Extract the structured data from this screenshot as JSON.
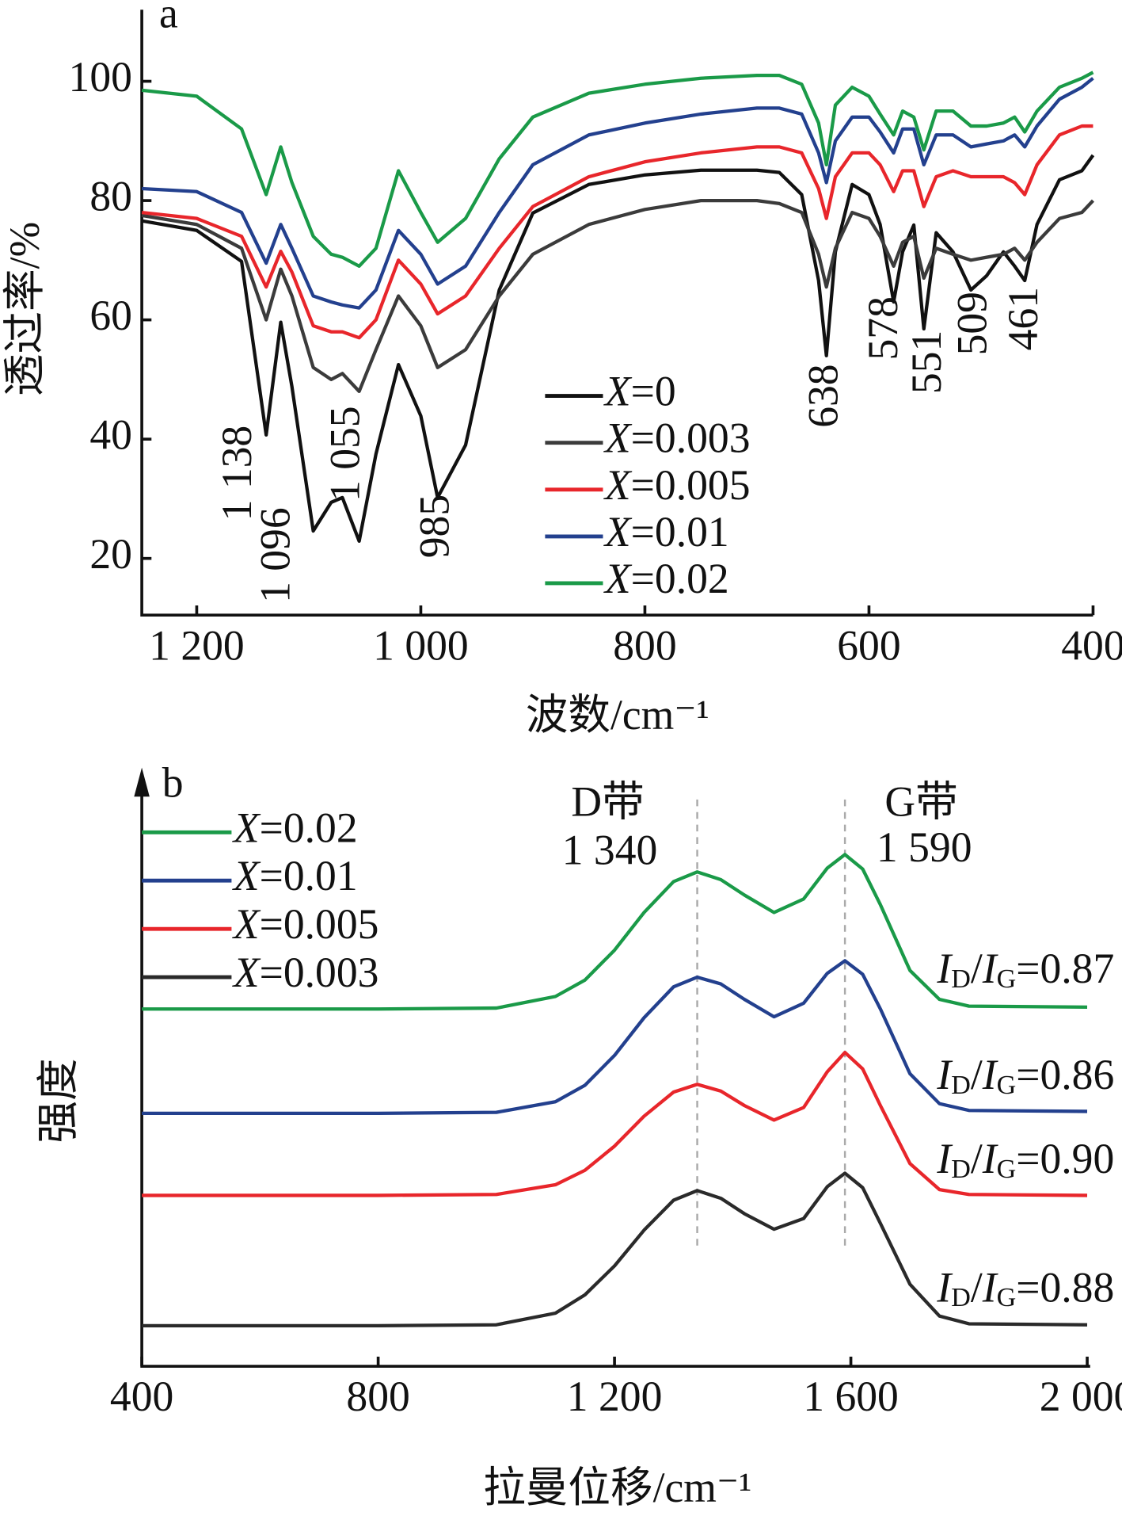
{
  "chart_data": [
    {
      "type": "line",
      "panel": "a",
      "y_label": "透过率/%",
      "x_label": "波数/cm⁻¹",
      "xlim": [
        1249,
        400
      ],
      "ylim": [
        10.5,
        112
      ],
      "xticks": [
        {
          "value": 1200,
          "label": "1 200"
        },
        {
          "value": 1000,
          "label": "1 000"
        },
        800,
        600,
        400
      ],
      "yticks": [
        20,
        40,
        60,
        80,
        100
      ],
      "annotations": [
        "1 138",
        "1 096",
        "1 055",
        "985",
        "638",
        "578",
        "551",
        "509",
        "461"
      ],
      "x": [
        1249,
        1200,
        1160,
        1138,
        1125,
        1115,
        1096,
        1080,
        1070,
        1055,
        1040,
        1020,
        1000,
        985,
        960,
        930,
        900,
        850,
        800,
        750,
        700,
        680,
        660,
        645,
        638,
        630,
        615,
        600,
        590,
        578,
        570,
        560,
        551,
        540,
        525,
        509,
        495,
        480,
        470,
        461,
        450,
        430,
        410,
        400
      ],
      "series": [
        {
          "name": "X=0",
          "color": "#111111",
          "values": [
            76.6,
            75,
            69.8,
            40.7,
            59.6,
            48.8,
            24.6,
            29.4,
            30.2,
            22.9,
            37.5,
            52.5,
            43.9,
            30.2,
            39,
            65,
            77.9,
            82.7,
            84.3,
            85.1,
            85.1,
            84.7,
            81,
            66.6,
            54,
            71.4,
            82.7,
            81,
            76,
            63,
            71.4,
            75.9,
            58.5,
            74.6,
            71.4,
            65,
            67.4,
            71.4,
            69,
            66.6,
            76,
            83.5,
            85,
            87.6
          ]
        },
        {
          "name": "X=0.003",
          "color": "#3b3b3b",
          "values": [
            77.5,
            76,
            72,
            60,
            68.5,
            64,
            52,
            50,
            51,
            48,
            55,
            64,
            59,
            52,
            55,
            64,
            71,
            76,
            78.5,
            80,
            80,
            79.5,
            78,
            71,
            65.5,
            72,
            78,
            77,
            74,
            69,
            73,
            74,
            67,
            72,
            71,
            70,
            70.5,
            71,
            72,
            70,
            73,
            77,
            78,
            80
          ]
        },
        {
          "name": "X=0.005",
          "color": "#e8262b",
          "values": [
            78,
            77,
            74,
            65.5,
            71.5,
            68,
            59,
            58,
            58,
            57,
            60,
            70,
            66,
            61,
            64,
            72,
            79,
            84,
            86.5,
            88,
            89,
            89,
            88,
            82,
            77,
            84,
            88,
            88,
            86,
            81.5,
            85,
            85,
            79,
            84,
            85,
            84,
            84,
            84,
            83,
            81,
            86,
            91,
            92.5,
            92.5
          ]
        },
        {
          "name": "X=0.01",
          "color": "#23408e",
          "values": [
            82,
            81.5,
            78,
            69.5,
            76,
            72,
            64,
            63,
            62.5,
            62,
            65,
            75,
            71,
            66,
            69,
            78,
            86,
            91,
            93,
            94.5,
            95.5,
            95.5,
            94.5,
            88,
            83,
            90,
            94,
            94,
            91.5,
            88,
            92,
            92,
            86,
            91,
            91,
            89,
            89.5,
            90,
            91,
            89,
            92.5,
            97,
            99,
            100.5
          ]
        },
        {
          "name": "X=0.02",
          "color": "#1a9a48",
          "values": [
            98.5,
            97.5,
            92,
            81,
            89,
            83,
            74,
            71,
            70.5,
            69,
            72,
            85,
            78,
            73,
            77,
            87,
            94,
            98,
            99.5,
            100.5,
            101,
            101,
            99.5,
            93,
            86,
            96,
            99,
            97.5,
            94.5,
            91,
            95,
            94,
            88.5,
            95,
            95,
            92.5,
            92.5,
            93,
            94,
            91.5,
            95,
            99,
            100.5,
            101.5
          ]
        }
      ]
    },
    {
      "type": "line",
      "panel": "b",
      "y_label": "强度",
      "x_label": "拉曼位移/cm⁻¹",
      "xlim": [
        400,
        2005
      ],
      "ylim": [
        0,
        620
      ],
      "xticks": [
        400,
        800,
        {
          "value": 1200,
          "label": "1 200"
        },
        {
          "value": 1600,
          "label": "1 600"
        },
        {
          "value": 2000,
          "label": "2 000"
        }
      ],
      "annotations": [
        "D带",
        "1 340",
        "G带",
        "1 590"
      ],
      "vlines": [
        1340,
        1590
      ],
      "ratio_labels": [
        "ID/IG=0.87",
        "ID/IG=0.86",
        "ID/IG=0.90",
        "ID/IG=0.88"
      ],
      "x": [
        400,
        800,
        1000,
        1100,
        1150,
        1200,
        1250,
        1300,
        1340,
        1380,
        1420,
        1470,
        1520,
        1560,
        1590,
        1620,
        1650,
        1700,
        1750,
        1800,
        2000
      ],
      "series": [
        {
          "name": "X=0.02",
          "color": "#1a9a48",
          "values": [
            370,
            370,
            371,
            383,
            400,
            431,
            470,
            502,
            512,
            504,
            488,
            470,
            484,
            516,
            530,
            515,
            478,
            410,
            380,
            373,
            372
          ]
        },
        {
          "name": "X=0.01",
          "color": "#23408e",
          "values": [
            262,
            262,
            263,
            274,
            291,
            322,
            361,
            393,
            403,
            396,
            380,
            362,
            376,
            407,
            420,
            406,
            370,
            303,
            272,
            265,
            264
          ]
        },
        {
          "name": "X=0.005",
          "color": "#e8262b",
          "values": [
            177,
            177,
            178,
            188,
            203,
            228,
            259,
            284,
            292,
            285,
            270,
            255,
            268,
            305,
            325,
            308,
            270,
            210,
            183,
            178,
            177
          ]
        },
        {
          "name": "X=0.003",
          "color": "#2a2a2a",
          "values": [
            42,
            42,
            43,
            55,
            74,
            104,
            141,
            172,
            182,
            174,
            158,
            142,
            153,
            186,
            200,
            185,
            148,
            85,
            52,
            44,
            43
          ]
        }
      ]
    }
  ]
}
